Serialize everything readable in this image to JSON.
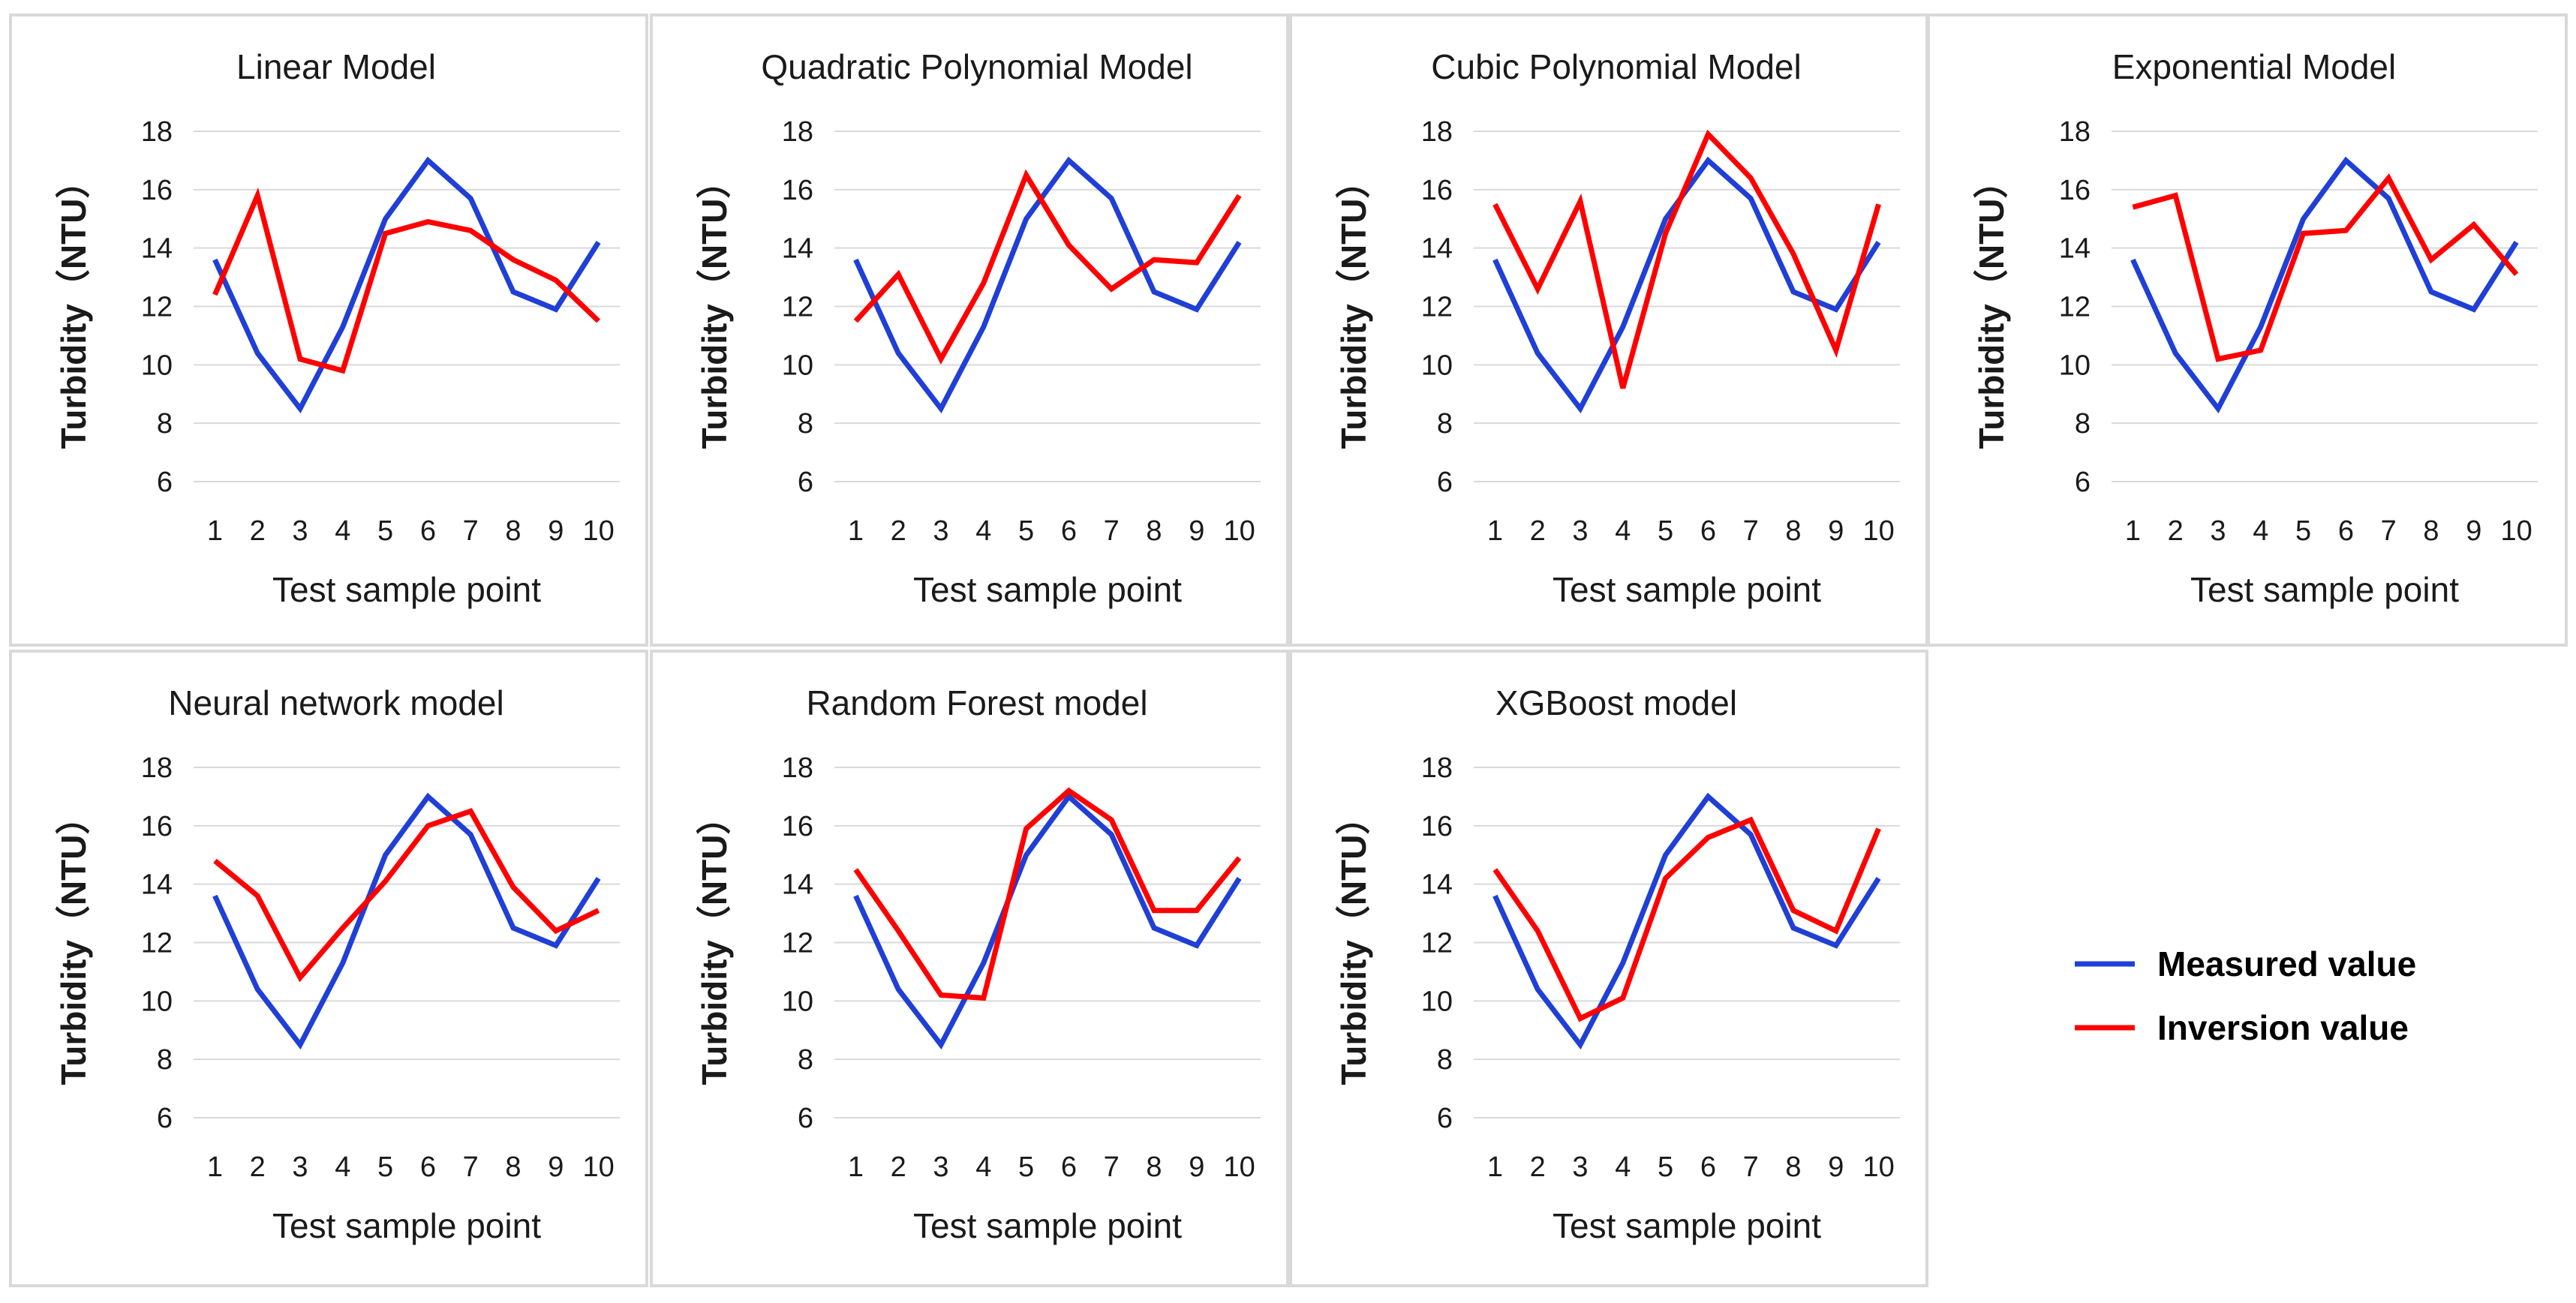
{
  "colors": {
    "measured": "#1f3fd6",
    "inversion": "#ff0000"
  },
  "legend": {
    "measured": "Measured value",
    "inversion": "Inversion value"
  },
  "chart_data": [
    {
      "type": "line",
      "title": "Linear Model",
      "xlabel": "Test sample point",
      "ylabel": "Turbidity（NTU）",
      "x": [
        1,
        2,
        3,
        4,
        5,
        6,
        7,
        8,
        9,
        10
      ],
      "ylim": [
        6,
        18
      ],
      "yticks": [
        6,
        8,
        10,
        12,
        14,
        16,
        18
      ],
      "series": [
        {
          "name": "Measured value",
          "values": [
            13.6,
            10.4,
            8.5,
            11.3,
            15.0,
            17.0,
            15.7,
            12.5,
            11.9,
            14.2
          ]
        },
        {
          "name": "Inversion value",
          "values": [
            12.4,
            15.8,
            10.2,
            9.8,
            14.5,
            14.9,
            14.6,
            13.6,
            12.9,
            11.5
          ]
        }
      ]
    },
    {
      "type": "line",
      "title": "Quadratic Polynomial Model",
      "xlabel": "Test sample point",
      "ylabel": "Turbidity（NTU）",
      "x": [
        1,
        2,
        3,
        4,
        5,
        6,
        7,
        8,
        9,
        10
      ],
      "ylim": [
        6,
        18
      ],
      "yticks": [
        6,
        8,
        10,
        12,
        14,
        16,
        18
      ],
      "series": [
        {
          "name": "Measured value",
          "values": [
            13.6,
            10.4,
            8.5,
            11.3,
            15.0,
            17.0,
            15.7,
            12.5,
            11.9,
            14.2
          ]
        },
        {
          "name": "Inversion value",
          "values": [
            11.5,
            13.1,
            10.2,
            12.8,
            16.5,
            14.1,
            12.6,
            13.6,
            13.5,
            15.8
          ]
        }
      ]
    },
    {
      "type": "line",
      "title": "Cubic Polynomial Model",
      "xlabel": "Test sample point",
      "ylabel": "Turbidity（NTU）",
      "x": [
        1,
        2,
        3,
        4,
        5,
        6,
        7,
        8,
        9,
        10
      ],
      "ylim": [
        6,
        18
      ],
      "yticks": [
        6,
        8,
        10,
        12,
        14,
        16,
        18
      ],
      "series": [
        {
          "name": "Measured value",
          "values": [
            13.6,
            10.4,
            8.5,
            11.3,
            15.0,
            17.0,
            15.7,
            12.5,
            11.9,
            14.2
          ]
        },
        {
          "name": "Inversion value",
          "values": [
            15.5,
            12.6,
            15.6,
            9.2,
            14.5,
            17.9,
            16.4,
            13.8,
            10.5,
            15.5
          ]
        }
      ]
    },
    {
      "type": "line",
      "title": "Exponential Model",
      "xlabel": "Test sample point",
      "ylabel": "Turbidity（NTU）",
      "x": [
        1,
        2,
        3,
        4,
        5,
        6,
        7,
        8,
        9,
        10
      ],
      "ylim": [
        6,
        18
      ],
      "yticks": [
        6,
        8,
        10,
        12,
        14,
        16,
        18
      ],
      "series": [
        {
          "name": "Measured value",
          "values": [
            13.6,
            10.4,
            8.5,
            11.3,
            15.0,
            17.0,
            15.7,
            12.5,
            11.9,
            14.2
          ]
        },
        {
          "name": "Inversion value",
          "values": [
            15.4,
            15.8,
            10.2,
            10.5,
            14.5,
            14.6,
            16.4,
            13.6,
            14.8,
            13.1
          ]
        }
      ]
    },
    {
      "type": "line",
      "title": "Neural network model",
      "xlabel": "Test sample point",
      "ylabel": "Turbidity（NTU）",
      "x": [
        1,
        2,
        3,
        4,
        5,
        6,
        7,
        8,
        9,
        10
      ],
      "ylim": [
        6,
        18
      ],
      "yticks": [
        6,
        8,
        10,
        12,
        14,
        16,
        18
      ],
      "series": [
        {
          "name": "Measured value",
          "values": [
            13.6,
            10.4,
            8.5,
            11.3,
            15.0,
            17.0,
            15.7,
            12.5,
            11.9,
            14.2
          ]
        },
        {
          "name": "Inversion value",
          "values": [
            14.8,
            13.6,
            10.8,
            12.5,
            14.1,
            16.0,
            16.5,
            13.9,
            12.4,
            13.1
          ]
        }
      ]
    },
    {
      "type": "line",
      "title": "Random Forest model",
      "xlabel": "Test sample point",
      "ylabel": "Turbidity（NTU）",
      "x": [
        1,
        2,
        3,
        4,
        5,
        6,
        7,
        8,
        9,
        10
      ],
      "ylim": [
        6,
        18
      ],
      "yticks": [
        6,
        8,
        10,
        12,
        14,
        16,
        18
      ],
      "series": [
        {
          "name": "Measured value",
          "values": [
            13.6,
            10.4,
            8.5,
            11.3,
            15.0,
            17.0,
            15.7,
            12.5,
            11.9,
            14.2
          ]
        },
        {
          "name": "Inversion value",
          "values": [
            14.5,
            12.4,
            10.2,
            10.1,
            15.9,
            17.2,
            16.2,
            13.1,
            13.1,
            14.9
          ]
        }
      ]
    },
    {
      "type": "line",
      "title": "XGBoost model",
      "xlabel": "Test sample point",
      "ylabel": "Turbidity（NTU）",
      "x": [
        1,
        2,
        3,
        4,
        5,
        6,
        7,
        8,
        9,
        10
      ],
      "ylim": [
        6,
        18
      ],
      "yticks": [
        6,
        8,
        10,
        12,
        14,
        16,
        18
      ],
      "series": [
        {
          "name": "Measured value",
          "values": [
            13.6,
            10.4,
            8.5,
            11.3,
            15.0,
            17.0,
            15.7,
            12.5,
            11.9,
            14.2
          ]
        },
        {
          "name": "Inversion value",
          "values": [
            14.5,
            12.4,
            9.4,
            10.1,
            14.2,
            15.6,
            16.2,
            13.1,
            12.4,
            15.9
          ]
        }
      ]
    }
  ]
}
